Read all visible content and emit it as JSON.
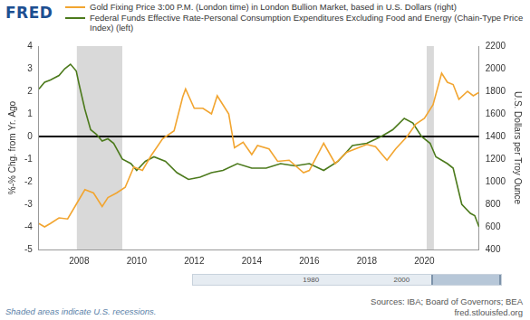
{
  "chart_data": {
    "type": "line",
    "logo": "FRED",
    "legend": "top left",
    "grid": false,
    "series": [
      {
        "name": "Gold Fixing Price 3:00 P.M. (London time) in London Bullion Market, based in U.S. Dollars (right)",
        "color": "#f2a530",
        "axis": "y2",
        "x": [
          2006.6,
          2006.8,
          2007.0,
          2007.3,
          2007.6,
          2007.9,
          2008.2,
          2008.5,
          2008.8,
          2009.0,
          2009.3,
          2009.6,
          2009.9,
          2010.2,
          2010.5,
          2010.9,
          2011.3,
          2011.6,
          2011.7,
          2012.0,
          2012.3,
          2012.6,
          2012.8,
          2013.2,
          2013.4,
          2013.7,
          2014.0,
          2014.2,
          2014.6,
          2014.9,
          2015.3,
          2015.8,
          2016.0,
          2016.5,
          2016.9,
          2017.3,
          2017.7,
          2018.0,
          2018.3,
          2018.7,
          2019.0,
          2019.4,
          2019.7,
          2020.0,
          2020.3,
          2020.6,
          2020.8,
          2021.0,
          2021.2,
          2021.5,
          2021.7,
          2021.9
        ],
        "values": [
          630,
          600,
          630,
          680,
          670,
          800,
          930,
          900,
          780,
          860,
          900,
          950,
          1130,
          1100,
          1230,
          1380,
          1450,
          1750,
          1820,
          1650,
          1650,
          1600,
          1760,
          1600,
          1300,
          1350,
          1240,
          1320,
          1290,
          1180,
          1190,
          1080,
          1100,
          1340,
          1160,
          1260,
          1300,
          1330,
          1310,
          1190,
          1290,
          1400,
          1510,
          1560,
          1680,
          1960,
          1880,
          1860,
          1730,
          1800,
          1760,
          1790
        ]
      },
      {
        "name": "Federal Funds Effective Rate-Personal Consumption Expenditures Excluding Food and Energy (Chain-Type Price Index) (left)",
        "color": "#4c7a1c",
        "axis": "y",
        "x": [
          2006.6,
          2006.8,
          2007.0,
          2007.3,
          2007.5,
          2007.7,
          2007.9,
          2008.0,
          2008.2,
          2008.4,
          2008.6,
          2008.8,
          2009.0,
          2009.2,
          2009.5,
          2009.8,
          2010.0,
          2010.3,
          2010.6,
          2011.0,
          2011.4,
          2011.8,
          2012.2,
          2012.6,
          2013.0,
          2013.5,
          2014.0,
          2014.5,
          2015.0,
          2015.5,
          2016.0,
          2016.5,
          2017.0,
          2017.5,
          2018.0,
          2018.5,
          2018.9,
          2019.3,
          2019.6,
          2019.9,
          2020.2,
          2020.4,
          2020.8,
          2021.0,
          2021.3,
          2021.6,
          2021.75,
          2021.9
        ],
        "values": [
          2.1,
          2.4,
          2.5,
          2.7,
          3.0,
          3.2,
          2.9,
          2.3,
          1.2,
          0.3,
          0.1,
          -0.2,
          -0.1,
          -0.3,
          -1.0,
          -1.2,
          -1.5,
          -1.1,
          -0.9,
          -1.1,
          -1.6,
          -1.9,
          -1.8,
          -1.6,
          -1.5,
          -1.2,
          -1.4,
          -1.4,
          -1.2,
          -1.3,
          -1.2,
          -1.5,
          -1.1,
          -0.4,
          -0.3,
          0.0,
          0.3,
          0.8,
          0.6,
          0.0,
          -0.3,
          -0.9,
          -1.2,
          -1.4,
          -3.0,
          -3.4,
          -3.5,
          -4.0
        ]
      }
    ],
    "xlim": [
      2006.6,
      2021.9
    ],
    "xticks": [
      2008,
      2010,
      2012,
      2014,
      2016,
      2018,
      2020
    ],
    "ylim": [
      -5,
      4
    ],
    "yticks": [
      -5,
      -4,
      -3,
      -2,
      -1,
      0,
      1,
      2,
      3,
      4
    ],
    "ylabel": "%-% Chg. from Yr. Ago",
    "y2lim": [
      400,
      2200
    ],
    "y2ticks": [
      400,
      600,
      800,
      1000,
      1200,
      1400,
      1600,
      1800,
      2000,
      2200
    ],
    "y2label": "U.S. Dollars per Troy Ounce",
    "reference_line_y": 0,
    "recessions": [
      [
        2007.92,
        2009.5
      ],
      [
        2020.08,
        2020.33
      ]
    ],
    "recession_color": "#d9d9d9",
    "note": "Shaded areas indicate U.S. recessions.",
    "source": "Sources: IBA; Board of Governors; BEA",
    "url": "fred.stlouisfed.org",
    "navigator": {
      "xlim": [
        1954,
        2021.9
      ],
      "xticks": [
        1980,
        2000
      ]
    }
  }
}
